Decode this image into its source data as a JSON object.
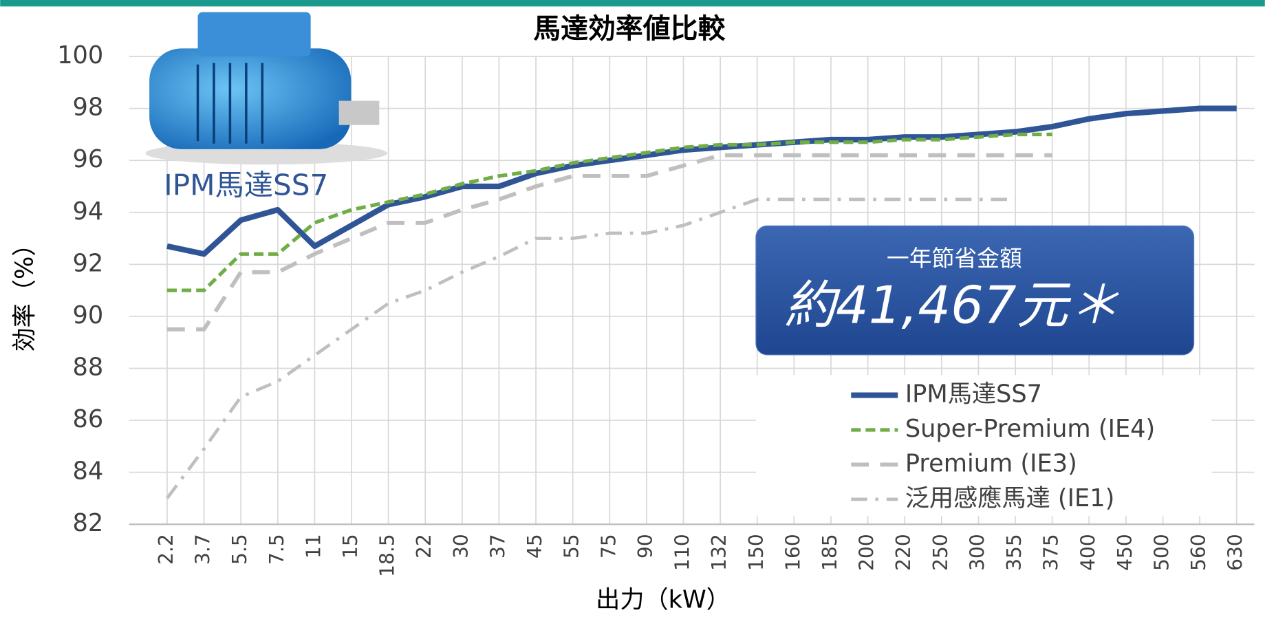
{
  "chart_data": {
    "type": "line",
    "title": "馬達効率値比較",
    "x_label": "出力（kW）",
    "y_label": "効率（%）",
    "categories": [
      "2.2",
      "3.7",
      "5.5",
      "7.5",
      "11",
      "15",
      "18.5",
      "22",
      "30",
      "37",
      "45",
      "55",
      "75",
      "90",
      "110",
      "132",
      "150",
      "160",
      "185",
      "200",
      "220",
      "250",
      "300",
      "355",
      "375",
      "400",
      "450",
      "500",
      "560",
      "630"
    ],
    "series": [
      {
        "name": "IPM馬達SS7",
        "color": "#2f5597",
        "style": "solid",
        "values": [
          92.7,
          92.4,
          93.7,
          94.1,
          92.7,
          93.5,
          94.3,
          94.6,
          95.0,
          95.0,
          95.5,
          95.8,
          96.0,
          96.2,
          96.4,
          96.5,
          96.6,
          96.7,
          96.8,
          96.8,
          96.9,
          96.9,
          97.0,
          97.1,
          97.3,
          97.6,
          97.8,
          97.9,
          98.0,
          98.0
        ]
      },
      {
        "name": "Super-Premium (IE4)",
        "color": "#70ad47",
        "style": "dashed",
        "values": [
          91.0,
          91.0,
          92.4,
          92.4,
          93.6,
          94.1,
          94.4,
          94.7,
          95.1,
          95.4,
          95.6,
          95.9,
          96.1,
          96.3,
          96.5,
          96.6,
          96.6,
          96.7,
          96.7,
          96.7,
          96.8,
          96.8,
          96.9,
          97.0,
          97.0,
          null,
          null,
          null,
          null,
          null
        ]
      },
      {
        "name": "Premium (IE3)",
        "color": "#bfbfbf",
        "style": "long-dashed",
        "values": [
          89.5,
          89.5,
          91.7,
          91.7,
          92.4,
          93.0,
          93.6,
          93.6,
          94.1,
          94.5,
          95.0,
          95.4,
          95.4,
          95.4,
          95.8,
          96.2,
          96.2,
          96.2,
          96.2,
          96.2,
          96.2,
          96.2,
          96.2,
          96.2,
          96.2,
          null,
          null,
          null,
          null,
          null
        ]
      },
      {
        "name": "泛用感應馬達 (IE1)",
        "color": "#bfbfbf",
        "style": "dash-dot",
        "values": [
          83.0,
          84.9,
          86.9,
          87.5,
          88.5,
          89.5,
          90.5,
          91.0,
          91.7,
          92.3,
          93.0,
          93.0,
          93.2,
          93.2,
          93.5,
          94.0,
          94.5,
          94.5,
          94.5,
          94.5,
          94.5,
          94.5,
          94.5,
          94.5,
          null,
          null,
          null,
          null,
          null,
          null
        ]
      }
    ],
    "ylim": [
      82,
      100
    ],
    "yticks": [
      82,
      84,
      86,
      88,
      90,
      92,
      94,
      96,
      98,
      100
    ],
    "grid": true,
    "legend": "bottom-right",
    "annotation": "IPM馬達SS7",
    "callout": {
      "label": "一年節省金額",
      "text": "約41,467元＊"
    }
  }
}
